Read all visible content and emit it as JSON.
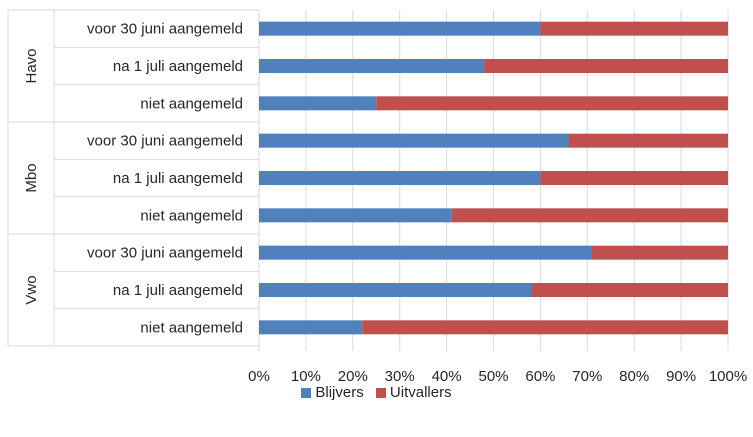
{
  "chart_data": {
    "type": "bar",
    "orientation": "horizontal",
    "stacked": "percent",
    "groups": [
      {
        "name": "Havo",
        "categories": [
          "voor 30 juni aangemeld",
          "na 1 juli aangemeld",
          "niet aangemeld"
        ]
      },
      {
        "name": "Mbo",
        "categories": [
          "voor 30 juni aangemeld",
          "na 1 juli aangemeld",
          "niet aangemeld"
        ]
      },
      {
        "name": "Vwo",
        "categories": [
          "voor 30 juni aangemeld",
          "na 1 juli aangemeld",
          "niet aangemeld"
        ]
      }
    ],
    "series": [
      {
        "name": "Blijvers",
        "color": "#4F81BD",
        "values": [
          60,
          48,
          25,
          66,
          60,
          41,
          71,
          58,
          22
        ]
      },
      {
        "name": "Uitvallers",
        "color": "#C0504D",
        "values": [
          40,
          52,
          75,
          34,
          40,
          59,
          29,
          42,
          78
        ]
      }
    ],
    "x_ticks": [
      "0%",
      "10%",
      "20%",
      "30%",
      "40%",
      "50%",
      "60%",
      "70%",
      "80%",
      "90%",
      "100%"
    ],
    "xlim": [
      0,
      100
    ],
    "grid": true,
    "legend_position": "bottom"
  }
}
